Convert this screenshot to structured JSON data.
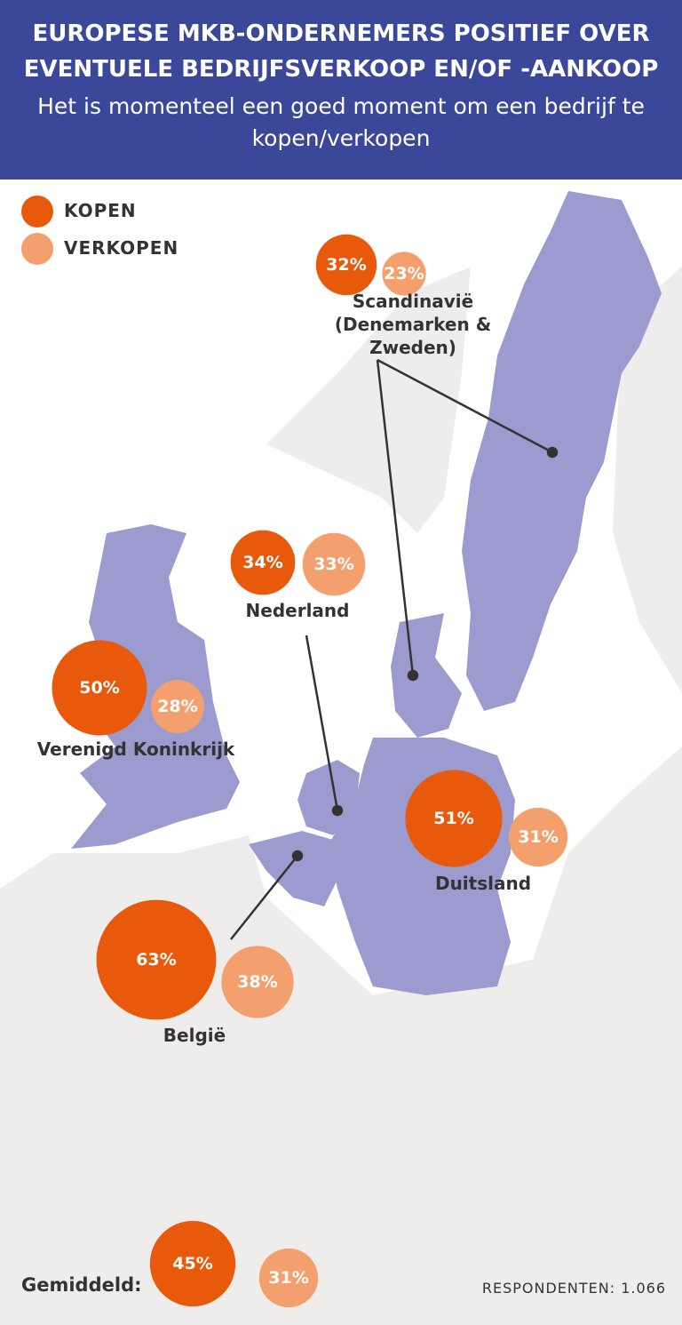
{
  "chart_data": {
    "type": "bubble-map",
    "title": "EUROPESE MKB-ONDERNEMERS POSITIEF OVER EVENTUELE BEDRIJFSVERKOOP EN/OF -AANKOOP",
    "subtitle": "Het is momenteel een goed moment om een bedrijf te kopen/verkopen",
    "categories": [
      "Scandinavië (Denemarken & Zweden)",
      "Nederland",
      "Verenigd Koninkrijk",
      "Duitsland",
      "België",
      "Gemiddeld:"
    ],
    "series": [
      {
        "name": "KOPEN",
        "color": "#e8590c",
        "values": [
          32,
          34,
          50,
          51,
          63,
          45
        ],
        "value_labels": [
          "32%",
          "34%",
          "50%",
          "51%",
          "63%",
          "45%"
        ]
      },
      {
        "name": "VERKOPEN",
        "color": "#f4a06e",
        "values": [
          23,
          33,
          28,
          31,
          38,
          31
        ],
        "value_labels": [
          "23%",
          "33%",
          "28%",
          "31%",
          "38%",
          "31%"
        ]
      }
    ],
    "note": "RESPONDENTEN: 1.066"
  }
}
